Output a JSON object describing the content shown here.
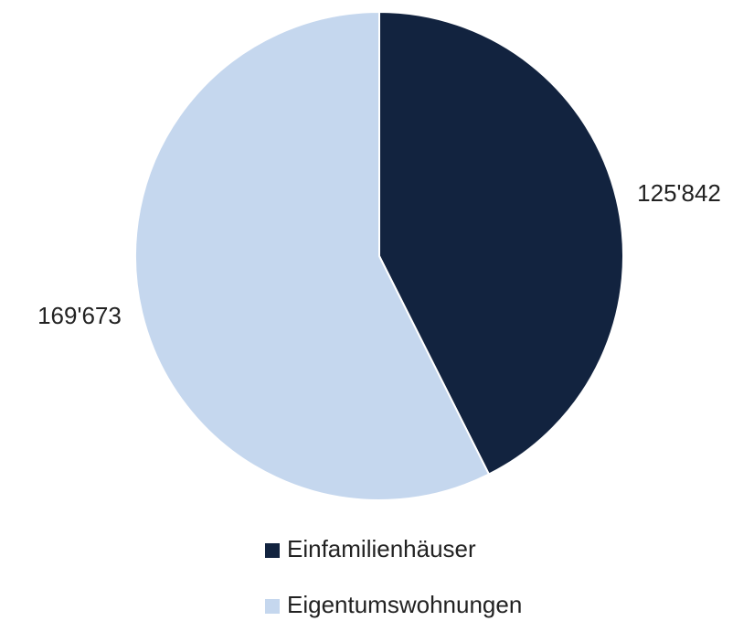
{
  "chart_data": {
    "type": "pie",
    "categories": [
      "Einfamilienhäuser",
      "Eigentumswohnungen"
    ],
    "values": [
      125842,
      169673
    ],
    "value_labels": [
      "125'842",
      "169'673"
    ],
    "colors": [
      "#12233f",
      "#c5d7ee"
    ]
  }
}
